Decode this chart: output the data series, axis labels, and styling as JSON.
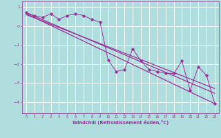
{
  "title": "",
  "xlabel": "Windchill (Refroidissement éolien,°C)",
  "ylabel": "",
  "bg_color": "#b0dede",
  "line_color": "#993399",
  "grid_color": "#ffffff",
  "x_data": [
    0,
    1,
    2,
    3,
    4,
    5,
    6,
    7,
    8,
    9,
    10,
    11,
    12,
    13,
    14,
    15,
    16,
    17,
    18,
    19,
    20,
    21,
    22,
    23
  ],
  "scatter_y": [
    0.7,
    0.55,
    0.45,
    0.65,
    0.35,
    0.55,
    0.65,
    0.55,
    0.35,
    0.2,
    -1.8,
    -2.4,
    -2.3,
    -1.2,
    -1.85,
    -2.3,
    -2.4,
    -2.5,
    -2.5,
    -1.85,
    -3.4,
    -2.15,
    -2.6,
    -4.1
  ],
  "line1_x": [
    0,
    23
  ],
  "line1_y": [
    0.7,
    -3.55
  ],
  "line2_x": [
    0,
    23
  ],
  "line2_y": [
    0.65,
    -4.1
  ],
  "line3_x": [
    0,
    23
  ],
  "line3_y": [
    0.6,
    -3.3
  ],
  "ylim": [
    -4.6,
    1.3
  ],
  "xlim": [
    -0.5,
    23.5
  ],
  "yticks": [
    1,
    0,
    -1,
    -2,
    -3,
    -4
  ],
  "xticks": [
    0,
    1,
    2,
    3,
    4,
    5,
    6,
    7,
    8,
    9,
    10,
    11,
    12,
    13,
    14,
    15,
    16,
    17,
    18,
    19,
    20,
    21,
    22,
    23
  ]
}
